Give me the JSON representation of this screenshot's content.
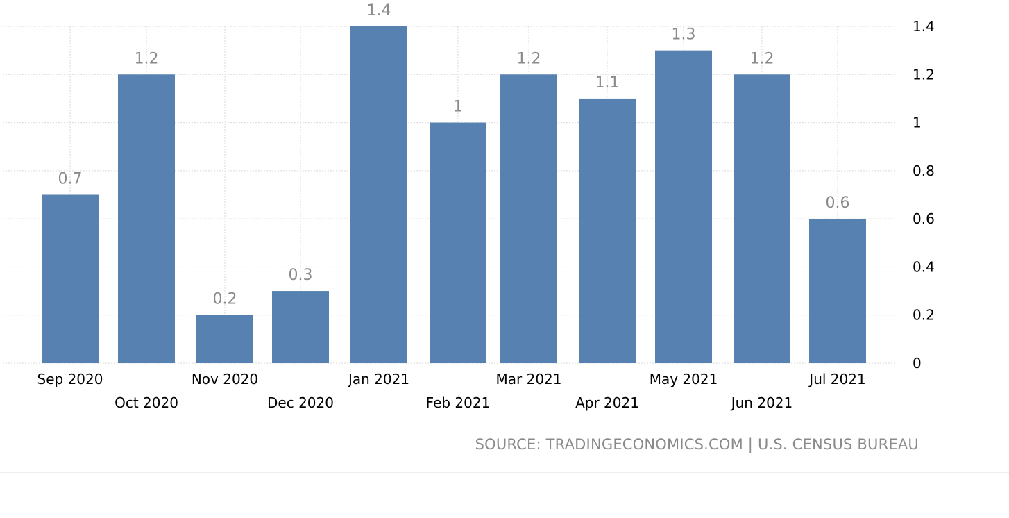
{
  "chart_data": {
    "type": "bar",
    "categories": [
      "Sep 2020",
      "Oct 2020",
      "Nov 2020",
      "Dec 2020",
      "Jan 2021",
      "Feb 2021",
      "Mar 2021",
      "Apr 2021",
      "May 2021",
      "Jun 2021",
      "Jul 2021"
    ],
    "values": [
      0.7,
      1.2,
      0.2,
      0.3,
      1.4,
      1,
      1.2,
      1.1,
      1.3,
      1.2,
      0.6
    ],
    "value_labels": [
      "0.7",
      "1.2",
      "0.2",
      "0.3",
      "1.4",
      "1",
      "1.2",
      "1.1",
      "1.3",
      "1.2",
      "0.6"
    ],
    "yticks": [
      "0",
      "0.2",
      "0.4",
      "0.6",
      "0.8",
      "1",
      "1.2",
      "1.4"
    ],
    "ylim": [
      0,
      1.4
    ],
    "y_axis_position": "right",
    "grid": true,
    "bar_color": "#5781b1",
    "label_color": "#8a8a8a"
  },
  "source_text": "SOURCE: TRADINGECONOMICS.COM | U.S. CENSUS BUREAU"
}
